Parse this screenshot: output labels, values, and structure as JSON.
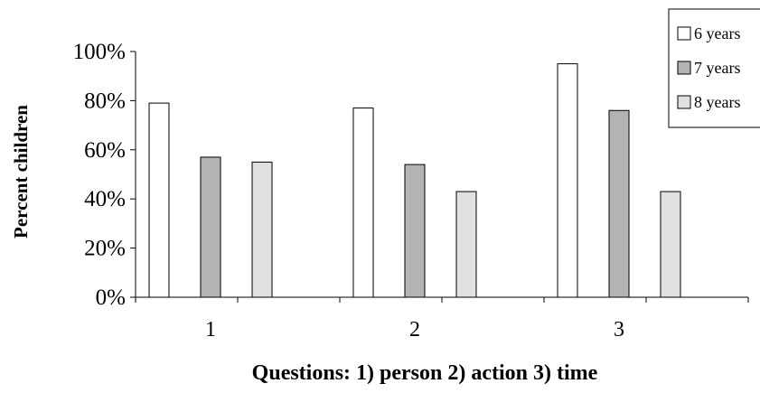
{
  "chart_data": {
    "type": "bar",
    "categories": [
      "1",
      "2",
      "3"
    ],
    "series": [
      {
        "name": "6 years",
        "values": [
          0.79,
          0.77,
          0.95
        ],
        "color": "#ffffff"
      },
      {
        "name": "7 years",
        "values": [
          0.57,
          0.54,
          0.76
        ],
        "color": "#b3b3b3"
      },
      {
        "name": "8 years",
        "values": [
          0.55,
          0.43,
          0.43
        ],
        "color": "#e0e0e0"
      }
    ],
    "xlabel": "Questions: 1) person  2) action  3) time",
    "ylabel": "Percent children",
    "ylim": [
      0,
      1
    ],
    "yticks": [
      "0%",
      "20%",
      "40%",
      "60%",
      "80%",
      "100%"
    ],
    "grid": false,
    "legend": "top-right"
  }
}
